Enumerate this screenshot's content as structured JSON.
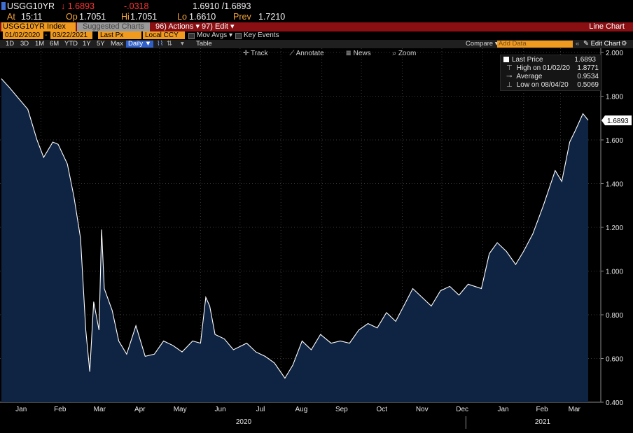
{
  "header": {
    "ticker": "USGG10YR",
    "last": "1.6893",
    "change": "-.0318",
    "bid_ask": "1.6910 /1.6893",
    "at_label": "At",
    "at_time": "15:11",
    "open_label": "Op",
    "open": "1.7051",
    "high_label": "Hi",
    "high": "1.7051",
    "low_label": "Lo",
    "low": "1.6610",
    "prev_label": "Prev",
    "prev": "1.7210"
  },
  "toolbar": {
    "security": "USGG10YR Index",
    "suggested_charts": "Suggested Charts",
    "actions": "96) Actions ▾",
    "edit": "97) Edit ▾",
    "view_title": "Line Chart",
    "start_date": "01/02/2020",
    "end_date": "03/22/2021",
    "field": "Last Px",
    "currency": "Local CCY",
    "mov_avgs": "Mov Avgs ▾",
    "key_events": "Key Events",
    "ranges": [
      "1D",
      "3D",
      "1M",
      "6M",
      "YTD",
      "1Y",
      "5Y",
      "Max"
    ],
    "periodicity": "Daily ▼",
    "table": "Table",
    "compare": "Compare ▾",
    "add_data": "Add Data",
    "edit_chart": "✎ Edit Chart"
  },
  "tools": {
    "track": "Track",
    "annotate": "Annotate",
    "news": "News",
    "zoom": "Zoom"
  },
  "legend": {
    "rows": [
      {
        "label": "Last Price",
        "value": "1.6893"
      },
      {
        "label": "High on 01/02/20",
        "value": "1.8771"
      },
      {
        "label": "Average",
        "value": "0.9534"
      },
      {
        "label": "Low on 08/04/20",
        "value": "0.5069"
      }
    ]
  },
  "colors": {
    "area": "#0f2342",
    "line": "#ffffff",
    "accent": "#f09b20",
    "redbar": "#8a0f13"
  },
  "chart_data": {
    "type": "area",
    "x_months": [
      "Jan",
      "Feb",
      "Mar",
      "Apr",
      "May",
      "Jun",
      "Jul",
      "Aug",
      "Sep",
      "Oct",
      "Nov",
      "Dec",
      "Jan",
      "Feb",
      "Mar"
    ],
    "year_labels": [
      "2020",
      "2021"
    ],
    "y_ticks": [
      "0.400",
      "0.600",
      "0.800",
      "1.000",
      "1.200",
      "1.400",
      "1.600",
      "1.800",
      "2.000"
    ],
    "ylim": [
      0.4,
      2.0
    ],
    "last_label": "1.6893",
    "grid": true,
    "series": [
      {
        "name": "Last Price",
        "x": [
          "2020-01-02",
          "2020-01-08",
          "2020-01-15",
          "2020-01-22",
          "2020-01-29",
          "2020-02-03",
          "2020-02-10",
          "2020-02-14",
          "2020-02-21",
          "2020-02-26",
          "2020-03-02",
          "2020-03-06",
          "2020-03-09",
          "2020-03-12",
          "2020-03-16",
          "2020-03-18",
          "2020-03-20",
          "2020-03-26",
          "2020-03-31",
          "2020-04-06",
          "2020-04-13",
          "2020-04-20",
          "2020-04-27",
          "2020-05-04",
          "2020-05-11",
          "2020-05-18",
          "2020-05-26",
          "2020-06-01",
          "2020-06-05",
          "2020-06-08",
          "2020-06-12",
          "2020-06-19",
          "2020-06-26",
          "2020-07-06",
          "2020-07-13",
          "2020-07-20",
          "2020-07-27",
          "2020-08-04",
          "2020-08-10",
          "2020-08-17",
          "2020-08-24",
          "2020-08-31",
          "2020-09-08",
          "2020-09-15",
          "2020-09-22",
          "2020-09-29",
          "2020-10-06",
          "2020-10-13",
          "2020-10-20",
          "2020-10-27",
          "2020-11-03",
          "2020-11-09",
          "2020-11-16",
          "2020-11-23",
          "2020-11-30",
          "2020-12-07",
          "2020-12-14",
          "2020-12-21",
          "2020-12-31",
          "2021-01-06",
          "2021-01-12",
          "2021-01-19",
          "2021-01-26",
          "2021-02-01",
          "2021-02-08",
          "2021-02-16",
          "2021-02-25",
          "2021-03-02",
          "2021-03-08",
          "2021-03-12",
          "2021-03-18",
          "2021-03-22"
        ],
        "y": [
          1.88,
          1.84,
          1.79,
          1.74,
          1.6,
          1.52,
          1.59,
          1.58,
          1.49,
          1.34,
          1.15,
          0.73,
          0.54,
          0.86,
          0.73,
          1.19,
          0.92,
          0.82,
          0.68,
          0.62,
          0.75,
          0.61,
          0.62,
          0.68,
          0.66,
          0.63,
          0.68,
          0.67,
          0.88,
          0.84,
          0.71,
          0.69,
          0.64,
          0.67,
          0.63,
          0.61,
          0.58,
          0.51,
          0.57,
          0.68,
          0.64,
          0.71,
          0.67,
          0.68,
          0.67,
          0.73,
          0.76,
          0.74,
          0.81,
          0.77,
          0.85,
          0.92,
          0.88,
          0.84,
          0.91,
          0.93,
          0.89,
          0.94,
          0.92,
          1.08,
          1.13,
          1.09,
          1.03,
          1.09,
          1.17,
          1.3,
          1.46,
          1.41,
          1.59,
          1.64,
          1.72,
          1.69
        ]
      }
    ]
  }
}
